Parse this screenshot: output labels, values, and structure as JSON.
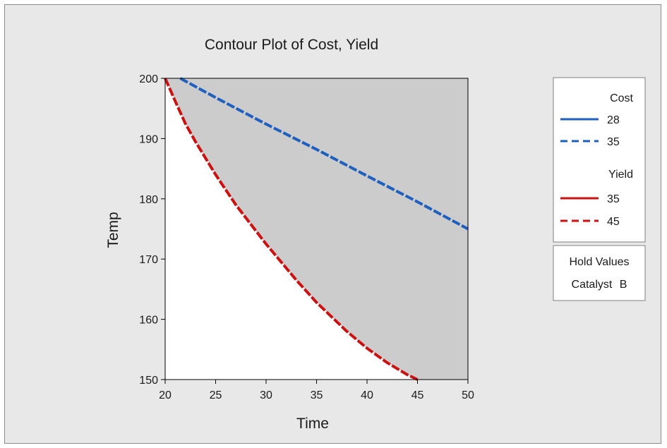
{
  "chart_data": {
    "type": "contour",
    "title": "Contour Plot of Cost, Yield",
    "xlabel": "Time",
    "ylabel": "Temp",
    "xlim": [
      20,
      50
    ],
    "ylim": [
      150,
      200
    ],
    "xticks": [
      20,
      25,
      30,
      35,
      40,
      45,
      50
    ],
    "yticks": [
      150,
      160,
      170,
      180,
      190,
      200
    ],
    "grid": false,
    "legend_position": "right",
    "feasible_region_color": "#ffffff",
    "infeasible_region_color": "#cccccc",
    "legend": {
      "groups": [
        {
          "heading": "Cost",
          "entries": [
            {
              "label": "28",
              "color": "#1f5fbf",
              "style": "solid"
            },
            {
              "label": "35",
              "color": "#1f5fbf",
              "style": "dashed"
            }
          ]
        },
        {
          "heading": "Yield",
          "entries": [
            {
              "label": "35",
              "color": "#cc1111",
              "style": "solid"
            },
            {
              "label": "45",
              "color": "#cc1111",
              "style": "dashed"
            }
          ]
        }
      ]
    },
    "hold_values": {
      "heading": "Hold Values",
      "items": [
        {
          "name": "Catalyst",
          "value": "B"
        }
      ]
    },
    "contours": [
      {
        "variable": "Cost",
        "level": 35,
        "color": "#1f5fbf",
        "style": "dashed",
        "x": [
          21.5,
          25,
          30,
          35,
          40,
          45,
          50
        ],
        "y": [
          200,
          196.8,
          192.4,
          188.2,
          183.8,
          179.5,
          175
        ]
      },
      {
        "variable": "Yield",
        "level": 45,
        "color": "#cc1111",
        "style": "dashed",
        "x": [
          20,
          21,
          22,
          23,
          25,
          27,
          30,
          33,
          35,
          38,
          40,
          42,
          44,
          45
        ],
        "y": [
          200,
          196.2,
          192.5,
          189.5,
          184,
          179,
          172.5,
          166.5,
          162.8,
          158,
          155.2,
          152.8,
          150.8,
          150
        ]
      }
    ]
  }
}
